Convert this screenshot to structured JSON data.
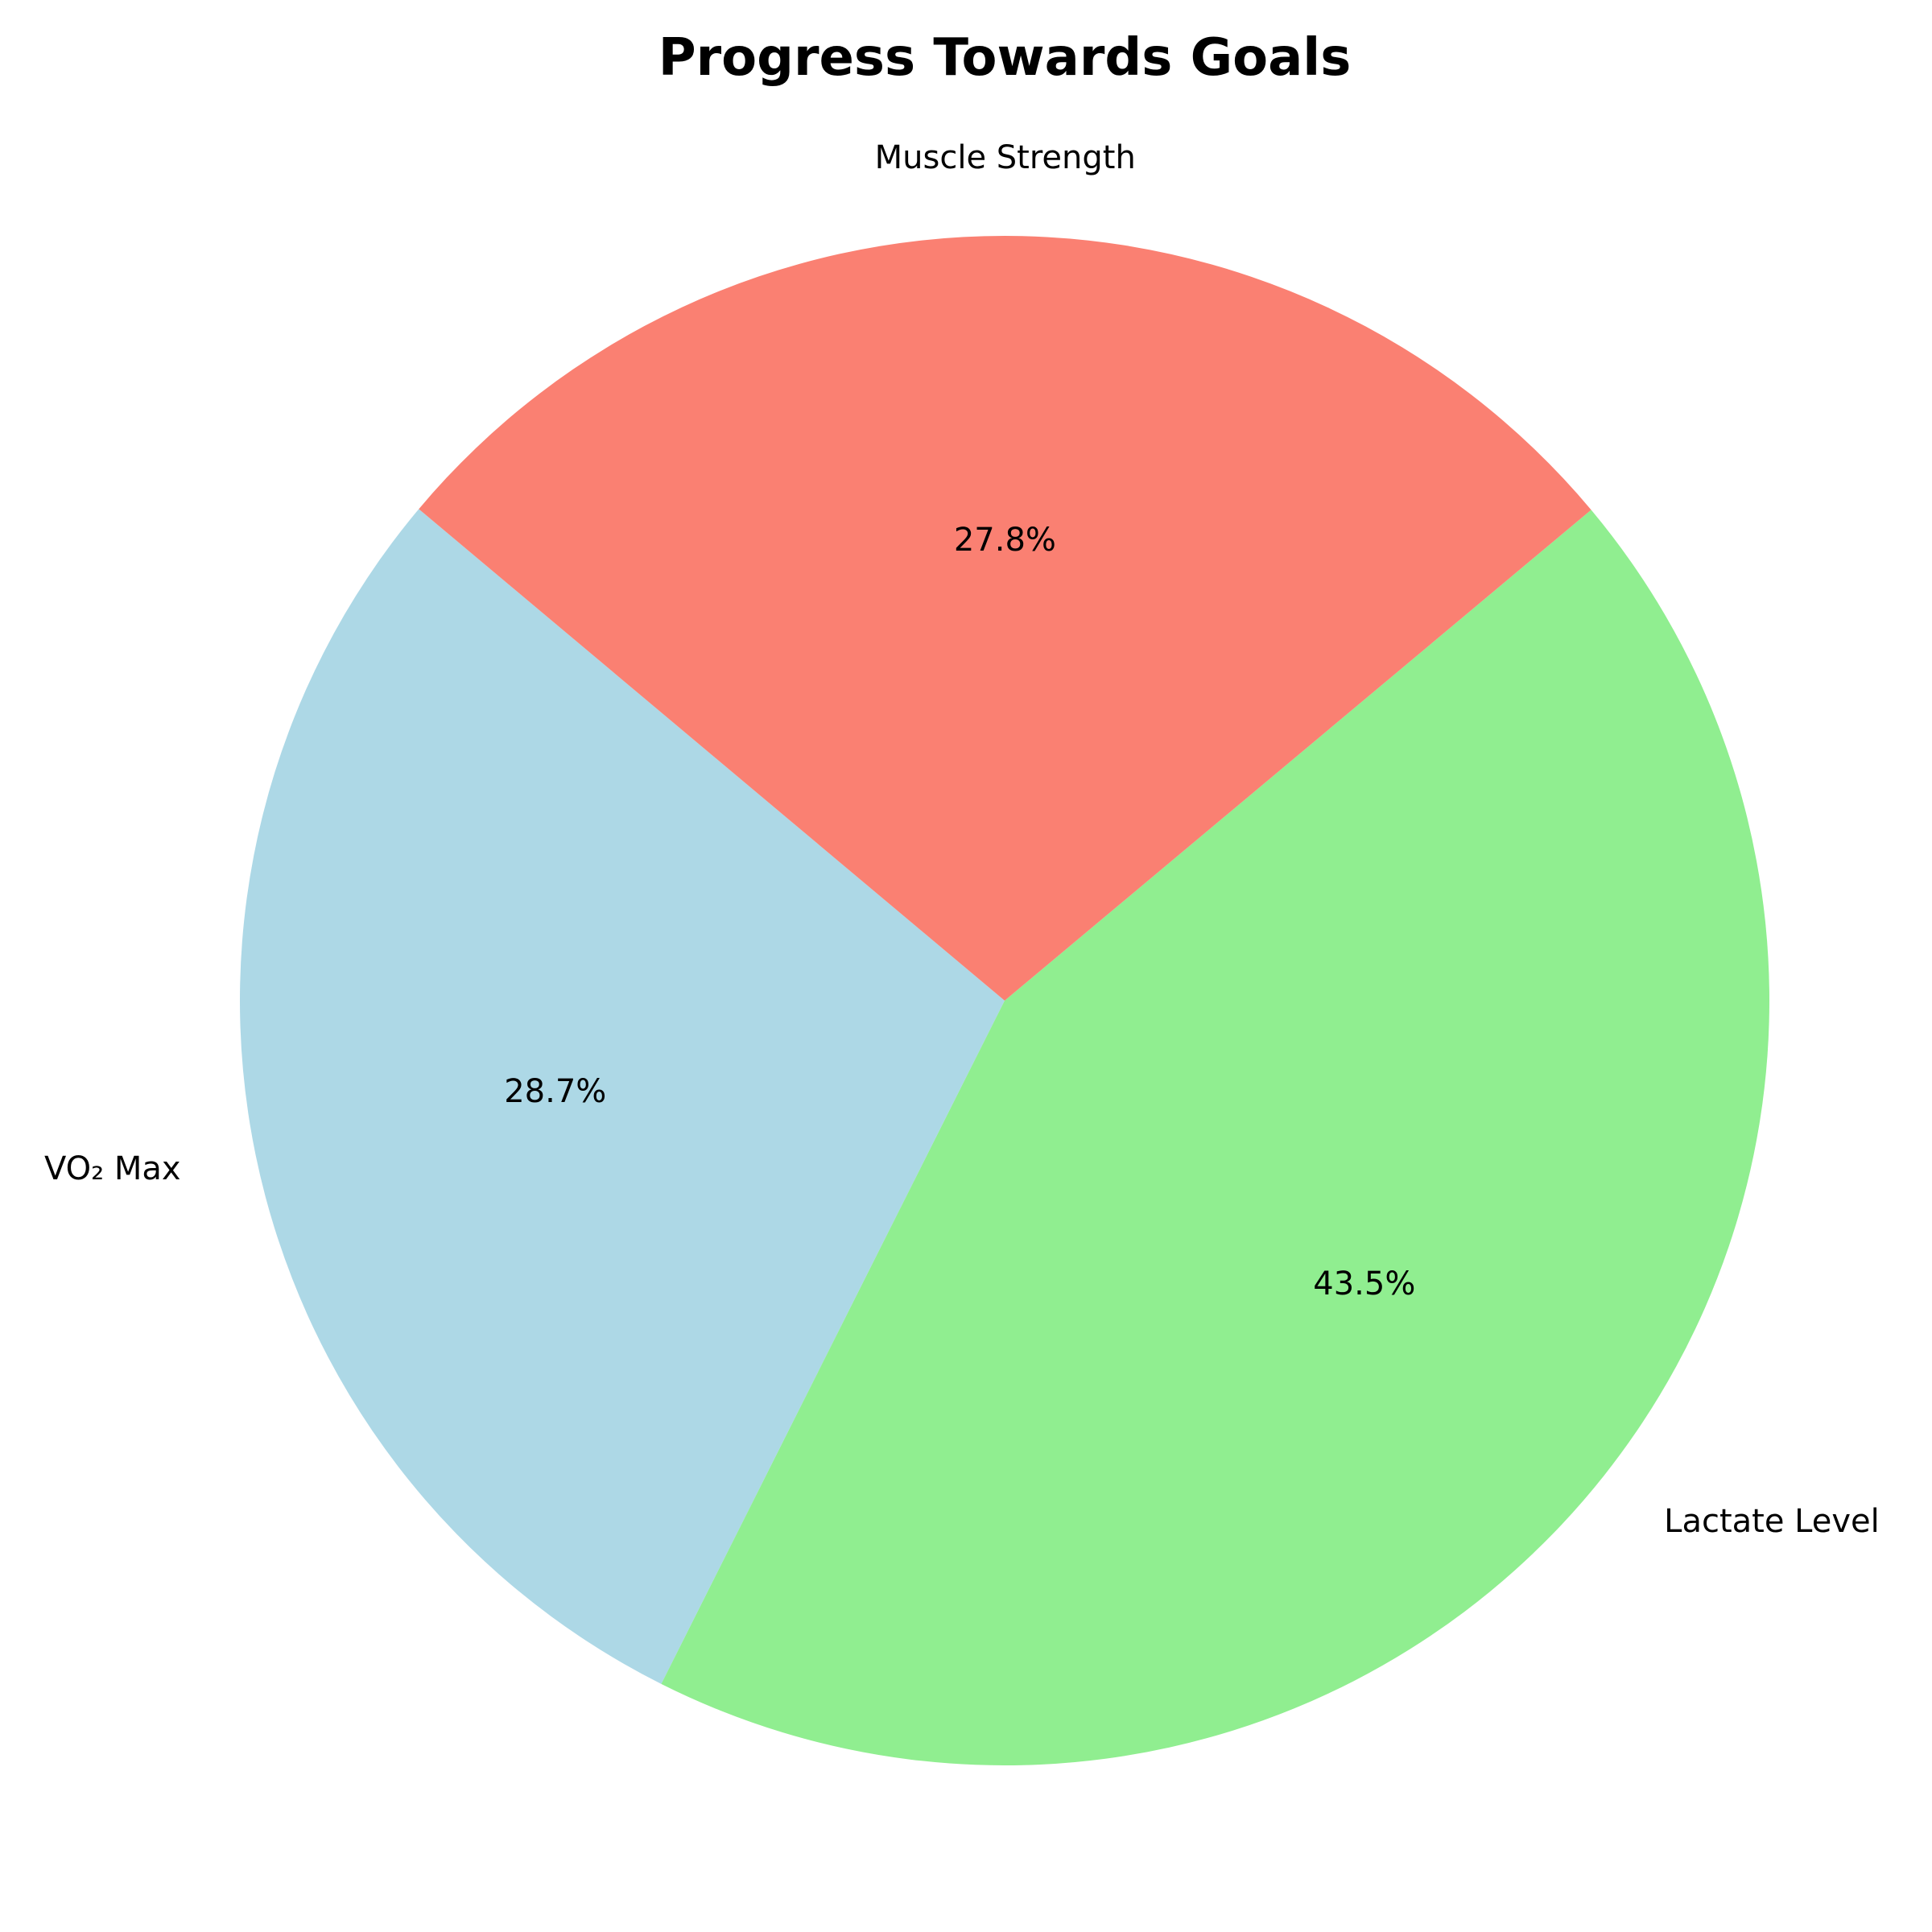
{
  "chart_data": {
    "type": "pie",
    "title": "Progress Towards Goals",
    "categories": [
      "VO₂ Max",
      "Lactate Level",
      "Muscle Strength"
    ],
    "values": [
      28.7,
      43.5,
      27.8
    ],
    "value_labels": [
      "28.7%",
      "43.5%",
      "27.8%"
    ],
    "colors": [
      "#add8e6",
      "#90ee90",
      "#fa8072"
    ],
    "start_angle_deg": 140,
    "direction": "counterclockwise",
    "legend": "none"
  }
}
